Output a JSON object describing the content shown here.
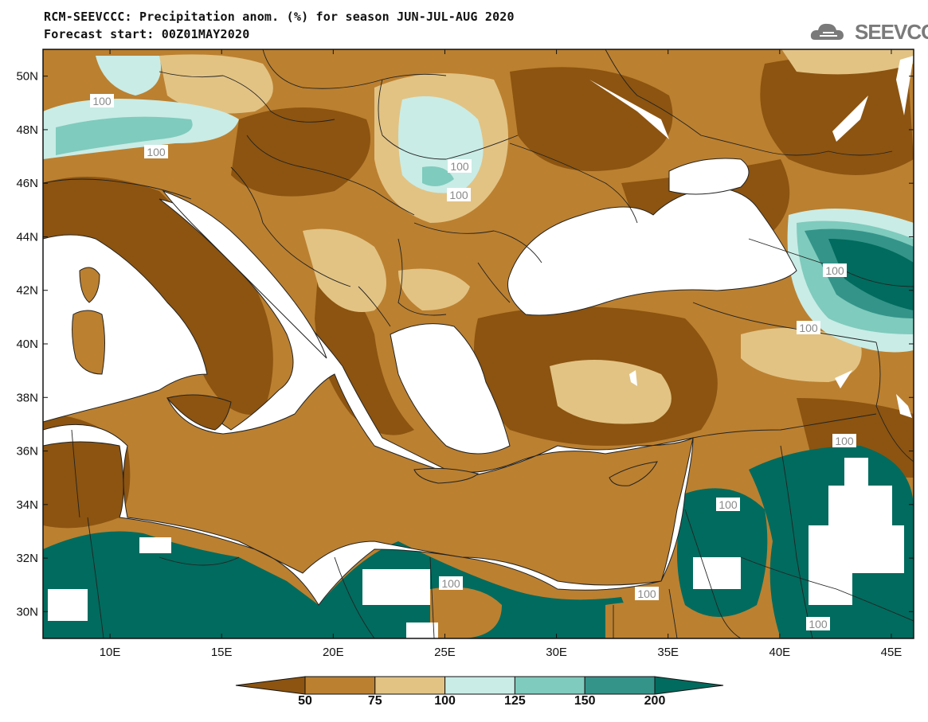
{
  "title": {
    "line1": "RCM-SEEVCCC: Precipitation anom. (%) for season JUN-JUL-AUG 2020",
    "line2": "Forecast start: 00Z01MAY2020"
  },
  "logo": {
    "text": "SEEVCCC",
    "icon": "cloud-logo-icon"
  },
  "map": {
    "lon_range": [
      7,
      46
    ],
    "lat_range": [
      29,
      51
    ],
    "x_ticks": [
      "10E",
      "15E",
      "20E",
      "25E",
      "30E",
      "35E",
      "40E",
      "45E"
    ],
    "y_ticks": [
      "50N",
      "48N",
      "46N",
      "44N",
      "42N",
      "40N",
      "38N",
      "36N",
      "34N",
      "32N",
      "30N"
    ],
    "contour_labels": [
      "100",
      "100",
      "100",
      "100",
      "100",
      "100",
      "100",
      "100",
      "100",
      "100",
      "100"
    ]
  },
  "colorbar": {
    "colors": [
      "#8c5410",
      "#bb8030",
      "#e2c384",
      "#c9ece6",
      "#7fcbbd",
      "#34948a",
      "#006b5e"
    ],
    "labels": [
      "50",
      "75",
      "100",
      "125",
      "150",
      "200"
    ]
  }
}
